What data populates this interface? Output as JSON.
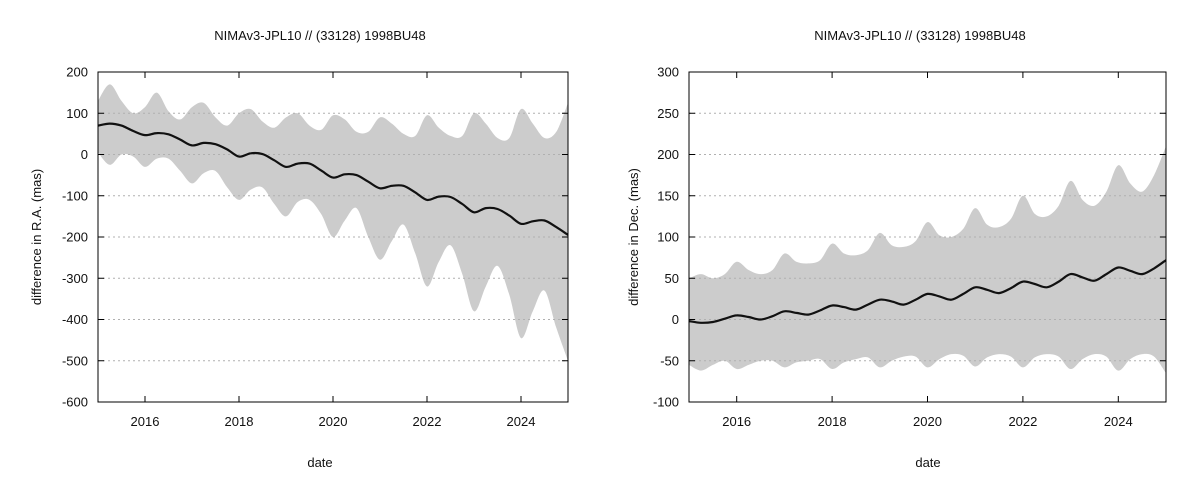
{
  "chart_data": [
    {
      "type": "line",
      "title": "NIMAv3-JPL10 // (33128) 1998BU48",
      "xlabel": "date",
      "ylabel": "difference in R.A. (mas)",
      "xlim": [
        2015.0,
        2025.0
      ],
      "ylim": [
        -600,
        200
      ],
      "xticks": [
        2016,
        2018,
        2020,
        2022,
        2024
      ],
      "yticks": [
        200,
        100,
        0,
        -100,
        -200,
        -300,
        -400,
        -500,
        -600
      ],
      "grid": "horizontal-dotted",
      "colors": {
        "series": "#111111",
        "band": "#cccccc",
        "grid": "#b0b0b0"
      },
      "series": [
        {
          "role": "mean",
          "x": [
            2015.0,
            2015.25,
            2015.5,
            2015.75,
            2016.0,
            2016.25,
            2016.5,
            2016.75,
            2017.0,
            2017.25,
            2017.5,
            2017.75,
            2018.0,
            2018.25,
            2018.5,
            2018.75,
            2019.0,
            2019.25,
            2019.5,
            2019.75,
            2020.0,
            2020.25,
            2020.5,
            2020.75,
            2021.0,
            2021.25,
            2021.5,
            2021.75,
            2022.0,
            2022.25,
            2022.5,
            2022.75,
            2023.0,
            2023.25,
            2023.5,
            2023.75,
            2024.0,
            2024.25,
            2024.5,
            2024.75,
            2025.0
          ],
          "y": [
            70,
            75,
            70,
            57,
            47,
            52,
            49,
            36,
            22,
            28,
            25,
            12,
            -5,
            3,
            1,
            -14,
            -30,
            -22,
            -22,
            -39,
            -56,
            -48,
            -50,
            -66,
            -82,
            -76,
            -76,
            -92,
            -110,
            -102,
            -103,
            -120,
            -140,
            -130,
            -132,
            -148,
            -168,
            -162,
            -160,
            -176,
            -195
          ]
        },
        {
          "role": "band-upper",
          "x": [
            2015.0,
            2015.25,
            2015.5,
            2015.75,
            2016.0,
            2016.25,
            2016.5,
            2016.75,
            2017.0,
            2017.25,
            2017.5,
            2017.75,
            2018.0,
            2018.25,
            2018.5,
            2018.75,
            2019.0,
            2019.25,
            2019.5,
            2019.75,
            2020.0,
            2020.25,
            2020.5,
            2020.75,
            2021.0,
            2021.25,
            2021.5,
            2021.75,
            2022.0,
            2022.25,
            2022.5,
            2022.75,
            2023.0,
            2023.25,
            2023.5,
            2023.75,
            2024.0,
            2024.25,
            2024.5,
            2024.75,
            2025.0
          ],
          "y": [
            130,
            170,
            130,
            100,
            115,
            150,
            105,
            85,
            115,
            125,
            90,
            70,
            100,
            110,
            80,
            65,
            90,
            100,
            70,
            60,
            95,
            85,
            55,
            55,
            90,
            75,
            50,
            45,
            95,
            65,
            45,
            45,
            100,
            75,
            40,
            40,
            110,
            75,
            40,
            55,
            125
          ]
        },
        {
          "role": "band-lower",
          "x": [
            2015.0,
            2015.25,
            2015.5,
            2015.75,
            2016.0,
            2016.25,
            2016.5,
            2016.75,
            2017.0,
            2017.25,
            2017.5,
            2017.75,
            2018.0,
            2018.25,
            2018.5,
            2018.75,
            2019.0,
            2019.25,
            2019.5,
            2019.75,
            2020.0,
            2020.25,
            2020.5,
            2020.75,
            2021.0,
            2021.25,
            2021.5,
            2021.75,
            2022.0,
            2022.25,
            2022.5,
            2022.75,
            2023.0,
            2023.25,
            2023.5,
            2023.75,
            2024.0,
            2024.25,
            2024.5,
            2024.75,
            2025.0
          ],
          "y": [
            5,
            -25,
            0,
            -5,
            -30,
            -10,
            -10,
            -40,
            -70,
            -45,
            -40,
            -80,
            -110,
            -85,
            -80,
            -120,
            -150,
            -115,
            -110,
            -145,
            -200,
            -160,
            -130,
            -200,
            -255,
            -210,
            -170,
            -240,
            -320,
            -260,
            -220,
            -290,
            -380,
            -320,
            -270,
            -340,
            -445,
            -380,
            -330,
            -420,
            -500
          ]
        }
      ]
    },
    {
      "type": "line",
      "title": "NIMAv3-JPL10 // (33128) 1998BU48",
      "xlabel": "date",
      "ylabel": "difference in Dec. (mas)",
      "xlim": [
        2015.0,
        2025.0
      ],
      "ylim": [
        -100,
        300
      ],
      "xticks": [
        2016,
        2018,
        2020,
        2022,
        2024
      ],
      "yticks": [
        300,
        250,
        200,
        150,
        100,
        50,
        0,
        -50,
        -100
      ],
      "grid": "horizontal-dotted",
      "colors": {
        "series": "#111111",
        "band": "#cccccc",
        "grid": "#b0b0b0"
      },
      "series": [
        {
          "role": "mean",
          "x": [
            2015.0,
            2015.25,
            2015.5,
            2015.75,
            2016.0,
            2016.25,
            2016.5,
            2016.75,
            2017.0,
            2017.25,
            2017.5,
            2017.75,
            2018.0,
            2018.25,
            2018.5,
            2018.75,
            2019.0,
            2019.25,
            2019.5,
            2019.75,
            2020.0,
            2020.25,
            2020.5,
            2020.75,
            2021.0,
            2021.25,
            2021.5,
            2021.75,
            2022.0,
            2022.25,
            2022.5,
            2022.75,
            2023.0,
            2023.25,
            2023.5,
            2023.75,
            2024.0,
            2024.25,
            2024.5,
            2024.75,
            2025.0
          ],
          "y": [
            -2,
            -4,
            -3,
            1,
            5,
            3,
            0,
            4,
            10,
            8,
            6,
            11,
            17,
            15,
            12,
            18,
            24,
            22,
            18,
            24,
            31,
            28,
            24,
            31,
            39,
            36,
            32,
            38,
            46,
            43,
            39,
            46,
            55,
            51,
            47,
            55,
            63,
            59,
            55,
            62,
            72
          ]
        },
        {
          "role": "band-upper",
          "x": [
            2015.0,
            2015.25,
            2015.5,
            2015.75,
            2016.0,
            2016.25,
            2016.5,
            2016.75,
            2017.0,
            2017.25,
            2017.5,
            2017.75,
            2018.0,
            2018.25,
            2018.5,
            2018.75,
            2019.0,
            2019.25,
            2019.5,
            2019.75,
            2020.0,
            2020.25,
            2020.5,
            2020.75,
            2021.0,
            2021.25,
            2021.5,
            2021.75,
            2022.0,
            2022.25,
            2022.5,
            2022.75,
            2023.0,
            2023.25,
            2023.5,
            2023.75,
            2024.0,
            2024.25,
            2024.5,
            2024.75,
            2025.0
          ],
          "y": [
            50,
            55,
            50,
            55,
            70,
            60,
            55,
            60,
            80,
            70,
            68,
            72,
            92,
            80,
            78,
            84,
            105,
            90,
            88,
            95,
            118,
            102,
            100,
            110,
            135,
            115,
            112,
            122,
            150,
            128,
            125,
            138,
            168,
            145,
            138,
            155,
            187,
            165,
            155,
            175,
            210
          ]
        },
        {
          "role": "band-lower",
          "x": [
            2015.0,
            2015.25,
            2015.5,
            2015.75,
            2016.0,
            2016.25,
            2016.5,
            2016.75,
            2017.0,
            2017.25,
            2017.5,
            2017.75,
            2018.0,
            2018.25,
            2018.5,
            2018.75,
            2019.0,
            2019.25,
            2019.5,
            2019.75,
            2020.0,
            2020.25,
            2020.5,
            2020.75,
            2021.0,
            2021.25,
            2021.5,
            2021.75,
            2022.0,
            2022.25,
            2022.5,
            2022.75,
            2023.0,
            2023.25,
            2023.5,
            2023.75,
            2024.0,
            2024.25,
            2024.5,
            2024.75,
            2025.0
          ],
          "y": [
            -55,
            -62,
            -55,
            -50,
            -60,
            -55,
            -50,
            -50,
            -58,
            -52,
            -50,
            -48,
            -60,
            -52,
            -48,
            -46,
            -58,
            -50,
            -45,
            -45,
            -58,
            -48,
            -42,
            -44,
            -57,
            -46,
            -42,
            -45,
            -58,
            -46,
            -42,
            -45,
            -60,
            -48,
            -42,
            -45,
            -62,
            -48,
            -42,
            -45,
            -65
          ]
        }
      ]
    }
  ]
}
